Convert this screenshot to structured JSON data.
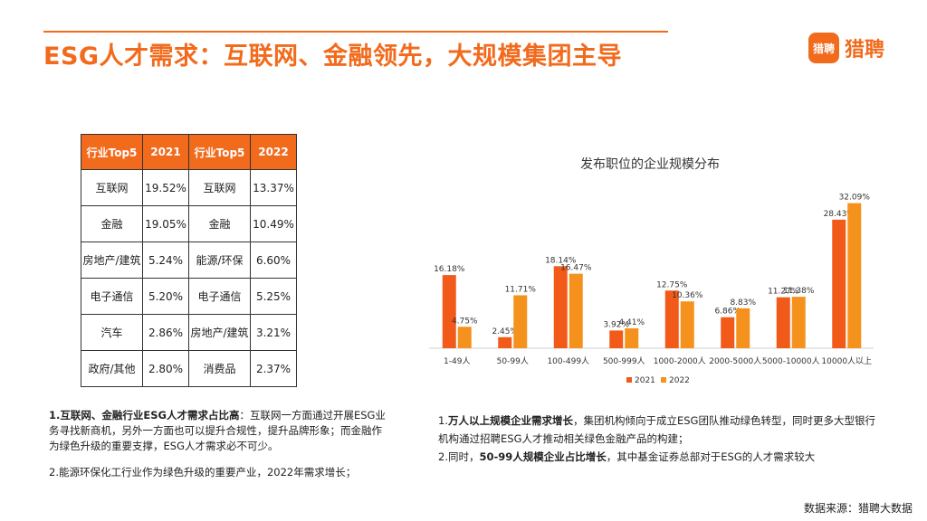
{
  "header": {
    "title": "ESG人才需求：互联网、金融领先，大规模集团主导",
    "logo_mark": "猎聘",
    "logo_text": "猎聘"
  },
  "industry_table": {
    "headers": [
      "行业Top5",
      "2021",
      "行业Top5",
      "2022"
    ],
    "rows": [
      [
        "互联网",
        "19.52%",
        "互联网",
        "13.37%"
      ],
      [
        "金融",
        "19.05%",
        "金融",
        "10.49%"
      ],
      [
        "房地产/建筑",
        "5.24%",
        "能源/环保",
        "6.60%"
      ],
      [
        "电子通信",
        "5.20%",
        "电子通信",
        "5.25%"
      ],
      [
        "汽车",
        "2.86%",
        "房地产/建筑",
        "3.21%"
      ],
      [
        "政府/其他",
        "2.80%",
        "消费品",
        "2.37%"
      ]
    ]
  },
  "chart_data": {
    "type": "bar",
    "title": "发布职位的企业规模分布",
    "categories": [
      "1-49人",
      "50-99人",
      "100-499人",
      "500-999人",
      "1000-2000人",
      "2000-5000人",
      "5000-10000人",
      "10000人以上"
    ],
    "series": [
      {
        "name": "2021",
        "values": [
          16.18,
          2.45,
          18.14,
          3.92,
          12.75,
          6.86,
          11.27,
          28.43
        ],
        "labels": [
          "16.18%",
          "2.45%",
          "18.14%",
          "3.92%",
          "12.75%",
          "6.86%",
          "11.27%",
          "28.43%"
        ]
      },
      {
        "name": "2022",
        "values": [
          4.75,
          11.71,
          16.47,
          4.41,
          10.36,
          8.83,
          11.38,
          32.09
        ],
        "labels": [
          "4.75%",
          "11.71%",
          "16.47%",
          "4.41%",
          "10.36%",
          "8.83%",
          "11.38%",
          "32.09%"
        ]
      }
    ],
    "ylim": [
      0,
      35
    ],
    "grid": false,
    "legend": "bottom",
    "colors": [
      "#f25a1a",
      "#f5921e"
    ]
  },
  "notes_left": [
    {
      "bold": "1.互联网、金融行业ESG人才需求占比高",
      "text": "：互联网一方面通过开展ESG业务寻找新商机，另外一方面也可以提升合规性，提升品牌形象；而金融作为绿色升级的重要支撑，ESG人才需求必不可少。"
    },
    {
      "bold": "",
      "text": "2.能源环保化工行业作为绿色升级的重要产业，2022年需求增长；"
    }
  ],
  "notes_right": [
    {
      "prefix": "1.",
      "bold": "万人以上规模企业需求增长",
      "text": "，集团机构倾向于成立ESG团队推动绿色转型，同时更多大型银行机构通过招聘ESG人才推动相关绿色金融产品的构建；"
    },
    {
      "prefix": "2.同时，",
      "bold": "50-99人规模企业占比增长",
      "text": "，其中基金证券总部对于ESG的人才需求较大"
    }
  ],
  "source": "数据来源：猎聘大数据"
}
